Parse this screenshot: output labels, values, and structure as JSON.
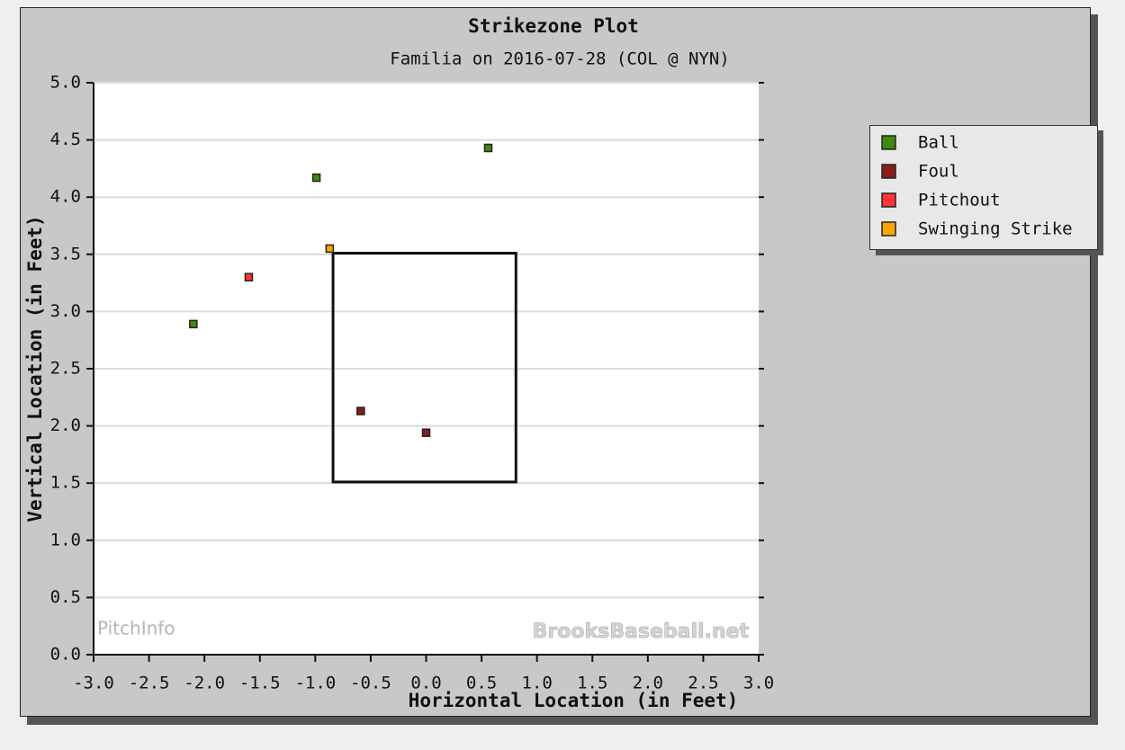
{
  "chart_data": {
    "type": "scatter",
    "title": "Strikezone Plot",
    "subtitle": "Familia on 2016-07-28 (COL @ NYN)",
    "x_label": "Horizontal Location (in Feet)",
    "y_label": "Vertical Location (in Feet)",
    "xlim": [
      -3,
      3
    ],
    "ylim": [
      0,
      5
    ],
    "xticks": [
      {
        "value": -3,
        "label": "-3.0"
      },
      {
        "value": -2.5,
        "label": "-2.5"
      },
      {
        "value": -2,
        "label": "-2.0"
      },
      {
        "value": -1.5,
        "label": "-1.5"
      },
      {
        "value": -1,
        "label": "-1.0"
      },
      {
        "value": -0.5,
        "label": "-0.5"
      },
      {
        "value": 0,
        "label": "0.0"
      },
      {
        "value": 0.5,
        "label": "0.5"
      },
      {
        "value": 1,
        "label": "1.0"
      },
      {
        "value": 1.5,
        "label": "1.5"
      },
      {
        "value": 2,
        "label": "2.0"
      },
      {
        "value": 2.5,
        "label": "2.5"
      },
      {
        "value": 3,
        "label": "3.0"
      }
    ],
    "yticks": [
      {
        "value": 0,
        "label": "0.0"
      },
      {
        "value": 0.5,
        "label": "0.5"
      },
      {
        "value": 1,
        "label": "1.0"
      },
      {
        "value": 1.5,
        "label": "1.5"
      },
      {
        "value": 2,
        "label": "2.0"
      },
      {
        "value": 2.5,
        "label": "2.5"
      },
      {
        "value": 3,
        "label": "3.0"
      },
      {
        "value": 3.5,
        "label": "3.5"
      },
      {
        "value": 4,
        "label": "4.0"
      },
      {
        "value": 4.5,
        "label": "4.5"
      },
      {
        "value": 5,
        "label": "5.0"
      }
    ],
    "grid": true,
    "legend": "right",
    "strike_zone": {
      "x": [
        -0.84,
        0.81
      ],
      "y": [
        1.51,
        3.51
      ]
    },
    "watermarks": [
      "PitchInfo",
      "BrooksBaseball.net"
    ],
    "series": [
      {
        "name": "Ball",
        "color": "#3f8a0e",
        "x": [
          -2.1,
          -0.99,
          0.56
        ],
        "y": [
          2.89,
          4.17,
          4.43
        ]
      },
      {
        "name": "Foul",
        "color": "#8b1c1c",
        "x": [
          -0.59,
          0.0
        ],
        "y": [
          2.13,
          1.94
        ]
      },
      {
        "name": "Pitchout",
        "color": "#ff3333",
        "x": [
          -1.6
        ],
        "y": [
          3.3
        ]
      },
      {
        "name": "Swinging Strike",
        "color": "#ffa500",
        "x": [
          -0.87
        ],
        "y": [
          3.55
        ]
      }
    ]
  }
}
